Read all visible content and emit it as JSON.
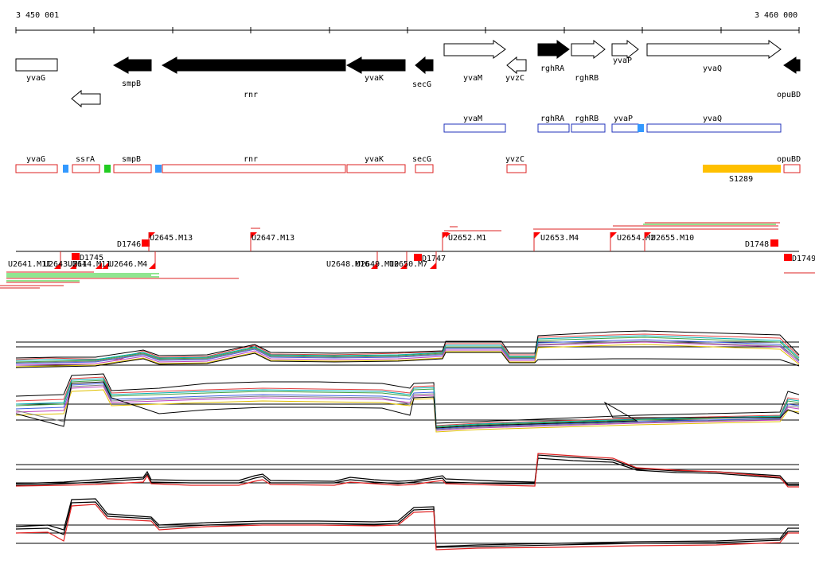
{
  "coordinates": {
    "start_label": "3 450 001",
    "end_label": "3 460 000"
  },
  "genes": [
    {
      "name": "yvaG",
      "dir": "right",
      "filled": false
    },
    {
      "name": "",
      "dir": "left",
      "filled": false
    },
    {
      "name": "smpB",
      "dir": "left",
      "filled": true
    },
    {
      "name": "rnr",
      "dir": "left",
      "filled": true
    },
    {
      "name": "yvaK",
      "dir": "left",
      "filled": true
    },
    {
      "name": "secG",
      "dir": "left",
      "filled": true
    },
    {
      "name": "yvaM",
      "dir": "right",
      "filled": false
    },
    {
      "name": "yvzC",
      "dir": "left",
      "filled": false
    },
    {
      "name": "rghRA",
      "dir": "right",
      "filled": true
    },
    {
      "name": "rghRB",
      "dir": "right",
      "filled": false
    },
    {
      "name": "yvaP",
      "dir": "right",
      "filled": false
    },
    {
      "name": "yvaQ",
      "dir": "right",
      "filled": false
    },
    {
      "name": "opuBD",
      "dir": "left",
      "filled": true
    }
  ],
  "operons_blue": [
    "yvaM",
    "rghRA",
    "rghRB",
    "yvaP",
    "yvaQ"
  ],
  "operons_red": [
    "yvaG",
    "ssrA",
    "smpB",
    "rnr",
    "yvaK",
    "secG",
    "yvzC",
    "opuBD"
  ],
  "feature_label": "S1289",
  "upper_markers": [
    "D1746",
    "U2645.M13",
    "U2647.M13",
    "U2652.M1",
    "U2653.M4",
    "U2654.M2",
    "U2655.M10",
    "D1748"
  ],
  "lower_markers": [
    "U2641.M11",
    "U2643.M11",
    "U2644.M11",
    "D1745",
    "U2646.M4",
    "U2648.M16",
    "U2649.M10",
    "U2650.M7",
    "D1747",
    "D1749"
  ],
  "colors": {
    "gene_fill": "#000000",
    "blue_box": "#2233bb",
    "red_box": "#dd2222",
    "feature": "#ffc000",
    "tick": "#3399ff",
    "green": "#22cc22",
    "marker": "#ff0000"
  }
}
